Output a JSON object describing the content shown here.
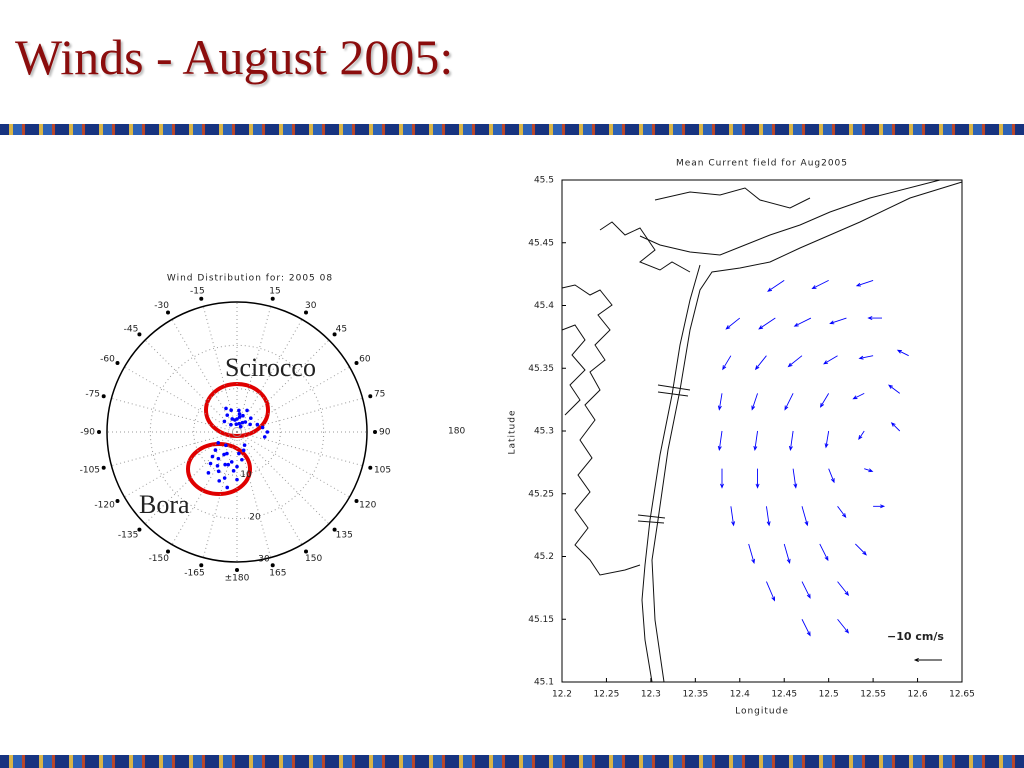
{
  "slide_title": "Winds - August 2005:",
  "chart_data": [
    {
      "type": "polar-scatter",
      "title": "Wind Distribution for: 2005 08",
      "color": "#0000ff",
      "theta": [
        0,
        10,
        -10,
        20,
        -20,
        30,
        -30,
        5,
        15,
        -5,
        40,
        45,
        -40,
        25,
        -15,
        60,
        70,
        80,
        90,
        100,
        -50,
        35,
        -25,
        8,
        -160,
        -150,
        -170,
        -145,
        -155,
        -165,
        -140,
        -175,
        180,
        170,
        -150,
        -135,
        -160,
        -145,
        -155,
        -165,
        175,
        160,
        -130,
        -170,
        150,
        -120,
        -140,
        -180
      ],
      "values": [
        3,
        3.5,
        2.8,
        4,
        3.2,
        2.5,
        4.5,
        5,
        2,
        1.8,
        3,
        4.5,
        2.2,
        5.5,
        5.2,
        3.5,
        5,
        6,
        7,
        6.5,
        3.8,
        1.5,
        6,
        4.2,
        8,
        9,
        7,
        7.5,
        10,
        11,
        9.5,
        9,
        8,
        6.5,
        6,
        8,
        12,
        11.5,
        5.5,
        7.8,
        5,
        4.5,
        6.5,
        13,
        3.5,
        5,
        4,
        11
      ],
      "rlim": [
        0,
        30
      ],
      "rticks": [
        10,
        20,
        30
      ],
      "thetaticks": [
        -165,
        -150,
        -135,
        -120,
        -105,
        -90,
        -75,
        -60,
        -45,
        -30,
        -15,
        15,
        30,
        45,
        60,
        75,
        90,
        105,
        120,
        135,
        150,
        165,
        {
          "value": 180,
          "label": "±180"
        }
      ],
      "extra_label": "180",
      "annotations": [
        {
          "text": "Scirocco",
          "color": "#e00000"
        },
        {
          "text": "Bora",
          "color": "#e00000"
        }
      ]
    },
    {
      "type": "quiver",
      "title": "Mean Current field for Aug2005",
      "x_label": "Longitude",
      "y_label": "Latitude",
      "color": "#0000ff",
      "x": [
        12.45,
        12.5,
        12.55,
        12.4,
        12.44,
        12.48,
        12.52,
        12.56,
        12.39,
        12.43,
        12.47,
        12.51,
        12.55,
        12.59,
        12.38,
        12.42,
        12.46,
        12.5,
        12.54,
        12.58,
        12.38,
        12.42,
        12.46,
        12.5,
        12.54,
        12.58,
        12.38,
        12.42,
        12.46,
        12.5,
        12.54,
        12.39,
        12.43,
        12.47,
        12.51,
        12.55,
        12.41,
        12.45,
        12.49,
        12.53,
        12.43,
        12.47,
        12.51,
        12.47,
        12.51
      ],
      "y": [
        45.42,
        45.42,
        45.42,
        45.39,
        45.39,
        45.39,
        45.39,
        45.39,
        45.36,
        45.36,
        45.36,
        45.36,
        45.36,
        45.36,
        45.33,
        45.33,
        45.33,
        45.33,
        45.33,
        45.33,
        45.3,
        45.3,
        45.3,
        45.3,
        45.3,
        45.3,
        45.27,
        45.27,
        45.27,
        45.27,
        45.27,
        45.24,
        45.24,
        45.24,
        45.24,
        45.24,
        45.21,
        45.21,
        45.21,
        45.21,
        45.18,
        45.18,
        45.18,
        45.15,
        45.15
      ],
      "u": [
        -6,
        -6,
        -6,
        -5,
        -6,
        -6,
        -6,
        -5,
        -3,
        -4,
        -5,
        -5,
        -5,
        -4,
        -1,
        -2,
        -3,
        -3,
        -4,
        -4,
        -1,
        -1,
        -1,
        -1,
        -2,
        -3,
        0,
        0,
        1,
        2,
        3,
        1,
        1,
        2,
        3,
        4,
        2,
        2,
        3,
        4,
        3,
        3,
        4,
        3,
        4
      ],
      "v": [
        -4,
        -3,
        -2,
        -4,
        -4,
        -3,
        -2,
        0,
        -5,
        -5,
        -4,
        -3,
        -1,
        2,
        -6,
        -6,
        -6,
        -5,
        -2,
        3,
        -7,
        -7,
        -7,
        -6,
        -3,
        3,
        -7,
        -7,
        -7,
        -5,
        -1,
        -7,
        -7,
        -7,
        -4,
        0,
        -7,
        -7,
        -6,
        -4,
        -7,
        -6,
        -5,
        -6,
        -5
      ],
      "xlim": [
        12.2,
        12.65
      ],
      "ylim": [
        45.1,
        45.5
      ],
      "xticks": [
        12.2,
        12.25,
        12.3,
        12.35,
        12.4,
        12.45,
        12.5,
        12.55,
        12.6,
        12.65
      ],
      "yticks": [
        45.1,
        45.15,
        45.2,
        45.25,
        45.3,
        45.35,
        45.4,
        45.45,
        45.5
      ],
      "key": {
        "value": -10,
        "label": "−10 cm/s"
      }
    }
  ]
}
